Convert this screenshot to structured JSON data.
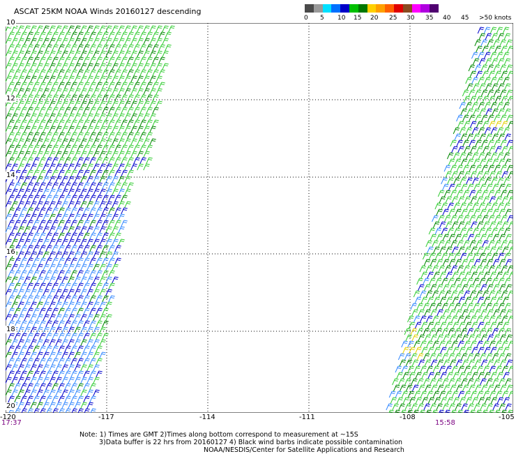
{
  "title": "ASCAT 25KM NOAA Winds 20160127 descending",
  "legend": {
    "colors": [
      "#4a4a4a",
      "#9a9a9a",
      "#00e0ff",
      "#0070ff",
      "#0000c8",
      "#00c000",
      "#007800",
      "#ffd000",
      "#ffa000",
      "#ff6000",
      "#e00000",
      "#8a4a20",
      "#ff00ff",
      "#b000e0",
      "#500070"
    ],
    "labels": [
      "0",
      "5",
      "10",
      "15",
      "20",
      "25",
      "30",
      "35",
      "40",
      "45",
      ">50 knots"
    ]
  },
  "map": {
    "lat_labels": [
      "10",
      "12",
      "14",
      "16",
      "18",
      "20"
    ],
    "lon_labels": [
      "-120",
      "-117",
      "-114",
      "-111",
      "-108",
      "-105"
    ],
    "barb_colors": {
      "green": "#33cc33",
      "dark_green": "#008800",
      "blue": "#0000cc",
      "light_blue": "#3388ff",
      "yellow": "#e6d000"
    }
  },
  "times": {
    "left": "17:37",
    "right": "15:58"
  },
  "notes": {
    "line1": "Note: 1) Times are GMT 2)Times along bottom correspond to measurement at ~15S",
    "line2": "3)Data buffer is 22 hrs from 20160127 4) Black wind barbs indicate possible contamination",
    "line3": "NOAA/NESDIS/Center for Satellite Applications and Research"
  }
}
